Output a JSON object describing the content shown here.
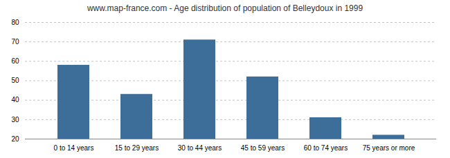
{
  "chart_data": {
    "type": "bar",
    "title": "www.map-france.com - Age distribution of population of Belleydoux in 1999",
    "categories": [
      "0 to 14 years",
      "15 to 29 years",
      "30 to 44 years",
      "45 to 59 years",
      "60 to 74 years",
      "75 years or more"
    ],
    "values": [
      58,
      43,
      71,
      52,
      31,
      22
    ],
    "color": "#3d6e99",
    "ylim": [
      20,
      80
    ],
    "yticks": [
      20,
      30,
      40,
      50,
      60,
      70,
      80
    ],
    "grid": true
  }
}
